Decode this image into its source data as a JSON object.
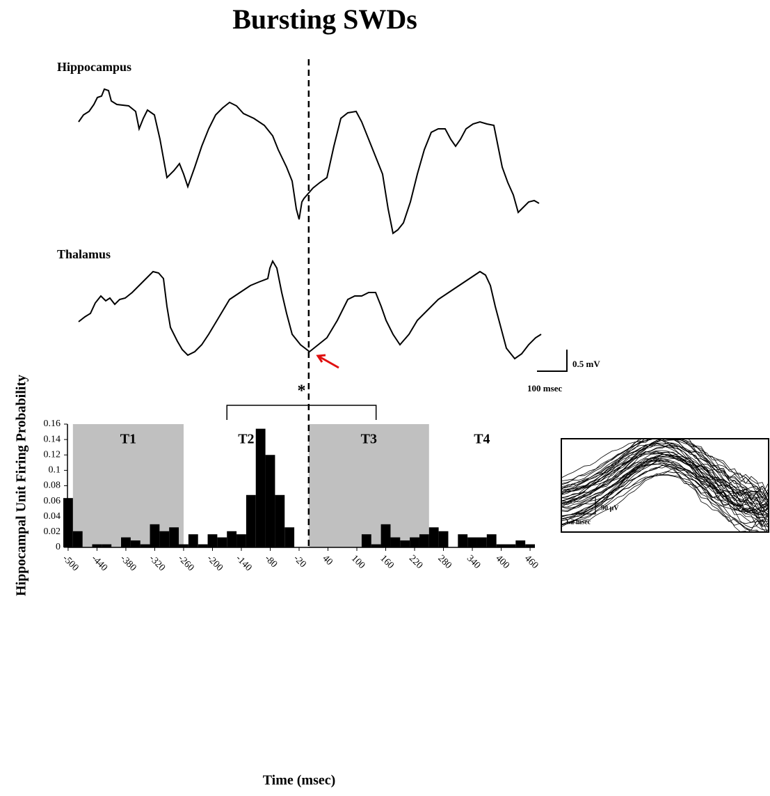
{
  "chart_data": {
    "type": "histogram",
    "title": "Bursting SWDs",
    "trace_labels": [
      "Hippocampus",
      "Thalamus"
    ],
    "scale_bar": {
      "vertical": "0.5 mV",
      "horizontal": "100 msec"
    },
    "inset_scale_bar": {
      "vertical": "90 µV",
      "horizontal": "1.2 msec"
    },
    "ylabel": "Hippocampal Unit Firing Probability",
    "xlabel": "Time (msec)",
    "bins": [
      -510,
      -490,
      -470,
      -450,
      -430,
      -410,
      -390,
      -370,
      -350,
      -330,
      -310,
      -290,
      -270,
      -250,
      -230,
      -210,
      -190,
      -170,
      -150,
      -130,
      -110,
      -90,
      -70,
      -50,
      -30,
      -10,
      10,
      30,
      50,
      70,
      90,
      110,
      130,
      150,
      170,
      190,
      210,
      230,
      250,
      270,
      290,
      310,
      330,
      350,
      370,
      390,
      410,
      430,
      450,
      470
    ],
    "values": [
      0.064,
      0.021,
      0,
      0.004,
      0.004,
      0,
      0.013,
      0.009,
      0.004,
      0.03,
      0.021,
      0.026,
      0.004,
      0.017,
      0.004,
      0.017,
      0.013,
      0.021,
      0.017,
      0.068,
      0.154,
      0.12,
      0.068,
      0.026,
      0,
      0,
      0,
      0,
      0,
      0,
      0,
      0.017,
      0.004,
      0.03,
      0.013,
      0.009,
      0.013,
      0.017,
      0.026,
      0.021,
      0,
      0.017,
      0.013,
      0.013,
      0.017,
      0.004,
      0.004,
      0.009,
      0.004
    ],
    "color": "#000000",
    "xlim": [
      -510,
      470
    ],
    "xticks": [
      -500,
      -440,
      -380,
      -320,
      -260,
      -200,
      -140,
      -80,
      -20,
      40,
      100,
      160,
      220,
      280,
      340,
      400,
      460
    ],
    "ylim": [
      0,
      0.16
    ],
    "yticks": [
      0,
      0.02,
      0.04,
      0.06,
      0.08,
      0.1,
      0.12,
      0.14,
      0.16
    ],
    "regions": [
      {
        "label": "T1",
        "start": -490,
        "end": -260,
        "shaded": true
      },
      {
        "label": "T2",
        "start": -260,
        "end": 0,
        "shaded": false
      },
      {
        "label": "T3",
        "start": 0,
        "end": 250,
        "shaded": true
      },
      {
        "label": "T4",
        "start": 250,
        "end": 470,
        "shaded": false
      }
    ],
    "shade_color": "#c0c0c0",
    "reference_line": 0,
    "bracket": {
      "label": "*",
      "from": -170,
      "to": 140
    }
  }
}
